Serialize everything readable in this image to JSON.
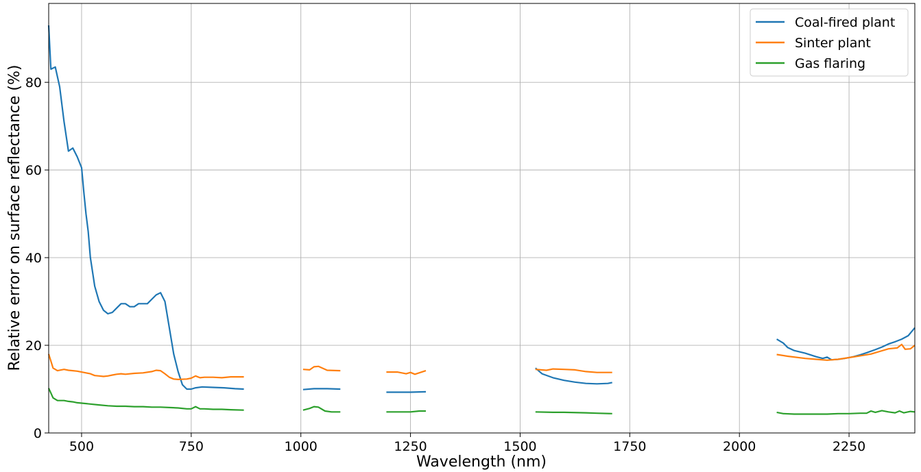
{
  "chart_data": {
    "type": "line",
    "title": "",
    "xlabel": "Wavelength (nm)",
    "ylabel": "Relative error on surface reflectance (%)",
    "xlim": [
      425,
      2400
    ],
    "ylim": [
      0,
      98
    ],
    "xticks": [
      500,
      750,
      1000,
      1250,
      1500,
      1750,
      2000,
      2250
    ],
    "yticks": [
      0,
      20,
      40,
      60,
      80
    ],
    "grid": true,
    "legend_position": "top-right",
    "series": [
      {
        "name": "Coal-fired plant",
        "color": "#1f77b4",
        "segments": [
          [
            [
              425,
              93
            ],
            [
              430,
              83
            ],
            [
              440,
              83.5
            ],
            [
              450,
              79
            ],
            [
              460,
              71
            ],
            [
              470,
              64.3
            ],
            [
              480,
              65
            ],
            [
              490,
              63
            ],
            [
              500,
              60.5
            ],
            [
              505,
              55
            ],
            [
              510,
              50
            ],
            [
              515,
              46
            ],
            [
              520,
              40
            ],
            [
              530,
              33.5
            ],
            [
              540,
              30
            ],
            [
              550,
              28
            ],
            [
              560,
              27.2
            ],
            [
              570,
              27.5
            ],
            [
              580,
              28.5
            ],
            [
              590,
              29.5
            ],
            [
              600,
              29.5
            ],
            [
              610,
              28.8
            ],
            [
              620,
              28.8
            ],
            [
              630,
              29.5
            ],
            [
              640,
              29.5
            ],
            [
              650,
              29.5
            ],
            [
              660,
              30.5
            ],
            [
              670,
              31.5
            ],
            [
              680,
              32
            ],
            [
              690,
              30
            ],
            [
              700,
              24
            ],
            [
              710,
              18
            ],
            [
              720,
              14
            ],
            [
              730,
              11
            ],
            [
              740,
              10
            ],
            [
              750,
              10
            ],
            [
              760,
              10.3
            ],
            [
              775,
              10.5
            ],
            [
              800,
              10.4
            ],
            [
              825,
              10.3
            ],
            [
              850,
              10.1
            ],
            [
              870,
              10
            ]
          ],
          [
            [
              1005,
              9.9
            ],
            [
              1030,
              10.1
            ],
            [
              1060,
              10.1
            ],
            [
              1090,
              10
            ]
          ],
          [
            [
              1195,
              9.3
            ],
            [
              1220,
              9.3
            ],
            [
              1250,
              9.3
            ],
            [
              1285,
              9.4
            ]
          ],
          [
            [
              1535,
              14.8
            ],
            [
              1550,
              13.5
            ],
            [
              1575,
              12.6
            ],
            [
              1600,
              12
            ],
            [
              1625,
              11.6
            ],
            [
              1650,
              11.3
            ],
            [
              1675,
              11.2
            ],
            [
              1700,
              11.3
            ],
            [
              1710,
              11.5
            ]
          ],
          [
            [
              2085,
              21.4
            ],
            [
              2100,
              20.5
            ],
            [
              2110,
              19.5
            ],
            [
              2125,
              18.8
            ],
            [
              2150,
              18.2
            ],
            [
              2175,
              17.4
            ],
            [
              2190,
              17
            ],
            [
              2200,
              17.3
            ],
            [
              2210,
              16.7
            ],
            [
              2225,
              16.8
            ],
            [
              2240,
              17
            ],
            [
              2260,
              17.4
            ],
            [
              2275,
              17.8
            ],
            [
              2290,
              18.3
            ],
            [
              2310,
              19
            ],
            [
              2325,
              19.6
            ],
            [
              2340,
              20.3
            ],
            [
              2355,
              20.8
            ],
            [
              2370,
              21.4
            ],
            [
              2385,
              22.2
            ],
            [
              2395,
              23.4
            ],
            [
              2400,
              24
            ]
          ]
        ]
      },
      {
        "name": "Sinter plant",
        "color": "#ff7f0e",
        "segments": [
          [
            [
              425,
              18
            ],
            [
              435,
              14.8
            ],
            [
              445,
              14.2
            ],
            [
              460,
              14.5
            ],
            [
              470,
              14.3
            ],
            [
              480,
              14.2
            ],
            [
              490,
              14.1
            ],
            [
              500,
              13.9
            ],
            [
              510,
              13.7
            ],
            [
              520,
              13.5
            ],
            [
              530,
              13.1
            ],
            [
              540,
              13.0
            ],
            [
              550,
              12.9
            ],
            [
              560,
              13.0
            ],
            [
              570,
              13.2
            ],
            [
              580,
              13.4
            ],
            [
              590,
              13.5
            ],
            [
              600,
              13.4
            ],
            [
              620,
              13.6
            ],
            [
              640,
              13.7
            ],
            [
              660,
              14.0
            ],
            [
              670,
              14.3
            ],
            [
              680,
              14.2
            ],
            [
              690,
              13.5
            ],
            [
              700,
              12.7
            ],
            [
              710,
              12.3
            ],
            [
              720,
              12.2
            ],
            [
              740,
              12.3
            ],
            [
              750,
              12.5
            ],
            [
              760,
              13
            ],
            [
              770,
              12.6
            ],
            [
              780,
              12.7
            ],
            [
              800,
              12.7
            ],
            [
              820,
              12.6
            ],
            [
              840,
              12.8
            ],
            [
              870,
              12.8
            ]
          ],
          [
            [
              1005,
              14.5
            ],
            [
              1020,
              14.4
            ],
            [
              1030,
              15.1
            ],
            [
              1040,
              15.2
            ],
            [
              1060,
              14.3
            ],
            [
              1090,
              14.2
            ]
          ],
          [
            [
              1195,
              13.9
            ],
            [
              1220,
              13.9
            ],
            [
              1240,
              13.5
            ],
            [
              1250,
              13.8
            ],
            [
              1260,
              13.4
            ],
            [
              1285,
              14.2
            ]
          ],
          [
            [
              1535,
              14.5
            ],
            [
              1560,
              14.3
            ],
            [
              1575,
              14.6
            ],
            [
              1600,
              14.5
            ],
            [
              1625,
              14.4
            ],
            [
              1650,
              14.0
            ],
            [
              1675,
              13.8
            ],
            [
              1710,
              13.8
            ]
          ],
          [
            [
              2085,
              17.9
            ],
            [
              2110,
              17.5
            ],
            [
              2150,
              17.0
            ],
            [
              2175,
              16.8
            ],
            [
              2200,
              16.6
            ],
            [
              2225,
              16.8
            ],
            [
              2250,
              17.2
            ],
            [
              2275,
              17.6
            ],
            [
              2300,
              18.0
            ],
            [
              2320,
              18.6
            ],
            [
              2340,
              19.2
            ],
            [
              2360,
              19.4
            ],
            [
              2370,
              20.2
            ],
            [
              2378,
              19.1
            ],
            [
              2390,
              19.2
            ],
            [
              2400,
              20
            ]
          ]
        ]
      },
      {
        "name": "Gas flaring",
        "color": "#2ca02c",
        "segments": [
          [
            [
              425,
              10.2
            ],
            [
              435,
              8.0
            ],
            [
              445,
              7.4
            ],
            [
              460,
              7.4
            ],
            [
              470,
              7.2
            ],
            [
              480,
              7.1
            ],
            [
              490,
              6.9
            ],
            [
              500,
              6.8
            ],
            [
              520,
              6.6
            ],
            [
              540,
              6.4
            ],
            [
              560,
              6.2
            ],
            [
              580,
              6.1
            ],
            [
              600,
              6.1
            ],
            [
              620,
              6.0
            ],
            [
              640,
              6.0
            ],
            [
              660,
              5.9
            ],
            [
              680,
              5.9
            ],
            [
              700,
              5.8
            ],
            [
              720,
              5.7
            ],
            [
              740,
              5.5
            ],
            [
              750,
              5.5
            ],
            [
              760,
              6.0
            ],
            [
              770,
              5.5
            ],
            [
              780,
              5.5
            ],
            [
              800,
              5.4
            ],
            [
              820,
              5.4
            ],
            [
              840,
              5.3
            ],
            [
              870,
              5.2
            ]
          ],
          [
            [
              1005,
              5.2
            ],
            [
              1020,
              5.6
            ],
            [
              1030,
              6.0
            ],
            [
              1040,
              5.9
            ],
            [
              1055,
              5.0
            ],
            [
              1070,
              4.8
            ],
            [
              1090,
              4.8
            ]
          ],
          [
            [
              1195,
              4.8
            ],
            [
              1220,
              4.8
            ],
            [
              1250,
              4.8
            ],
            [
              1270,
              5.0
            ],
            [
              1285,
              5.0
            ]
          ],
          [
            [
              1535,
              4.8
            ],
            [
              1575,
              4.7
            ],
            [
              1600,
              4.7
            ],
            [
              1650,
              4.6
            ],
            [
              1675,
              4.5
            ],
            [
              1710,
              4.4
            ]
          ],
          [
            [
              2085,
              4.7
            ],
            [
              2100,
              4.4
            ],
            [
              2125,
              4.3
            ],
            [
              2150,
              4.3
            ],
            [
              2175,
              4.3
            ],
            [
              2200,
              4.3
            ],
            [
              2225,
              4.4
            ],
            [
              2250,
              4.4
            ],
            [
              2275,
              4.5
            ],
            [
              2290,
              4.5
            ],
            [
              2300,
              5.0
            ],
            [
              2310,
              4.7
            ],
            [
              2325,
              5.1
            ],
            [
              2340,
              4.8
            ],
            [
              2355,
              4.6
            ],
            [
              2365,
              5.0
            ],
            [
              2375,
              4.6
            ],
            [
              2390,
              4.9
            ],
            [
              2400,
              4.8
            ]
          ]
        ]
      }
    ]
  }
}
